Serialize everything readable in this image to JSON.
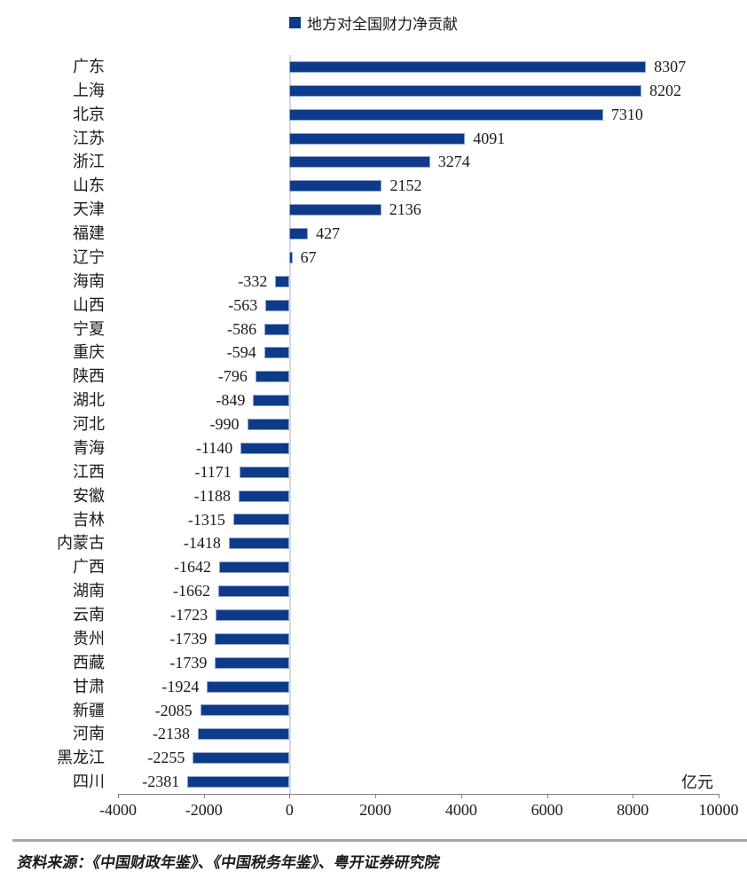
{
  "legend": {
    "label": "地方对全国财力净贡献"
  },
  "chart_data": {
    "type": "bar",
    "orientation": "horizontal",
    "title": "",
    "unit_label": "亿元",
    "categories": [
      "广东",
      "上海",
      "北京",
      "江苏",
      "浙江",
      "山东",
      "天津",
      "福建",
      "辽宁",
      "海南",
      "山西",
      "宁夏",
      "重庆",
      "陕西",
      "湖北",
      "河北",
      "青海",
      "江西",
      "安徽",
      "吉林",
      "内蒙古",
      "广西",
      "湖南",
      "云南",
      "贵州",
      "西藏",
      "甘肃",
      "新疆",
      "河南",
      "黑龙江",
      "四川"
    ],
    "values": [
      8307,
      8202,
      7310,
      4091,
      3274,
      2152,
      2136,
      427,
      67,
      -332,
      -563,
      -586,
      -594,
      -796,
      -849,
      -990,
      -1140,
      -1171,
      -1188,
      -1315,
      -1418,
      -1642,
      -1662,
      -1723,
      -1739,
      -1739,
      -1924,
      -2085,
      -2138,
      -2255,
      -2381
    ],
    "x_ticks": [
      -4000,
      -2000,
      0,
      2000,
      4000,
      6000,
      8000,
      10000
    ],
    "xlim": [
      -4000,
      10000
    ],
    "grid": false,
    "legend_position": "top-center",
    "colors": {
      "bar": "#0d3b8a",
      "bar_border": "#93a4cd",
      "axis": "#808080",
      "zero_line": "#d9d9d9",
      "text": "#1a1a1a",
      "footer_rule": "#a6a6a6"
    }
  },
  "footer": {
    "source": "资料来源：《中国财政年鉴》、《中国税务年鉴》、粤开证券研究院"
  }
}
